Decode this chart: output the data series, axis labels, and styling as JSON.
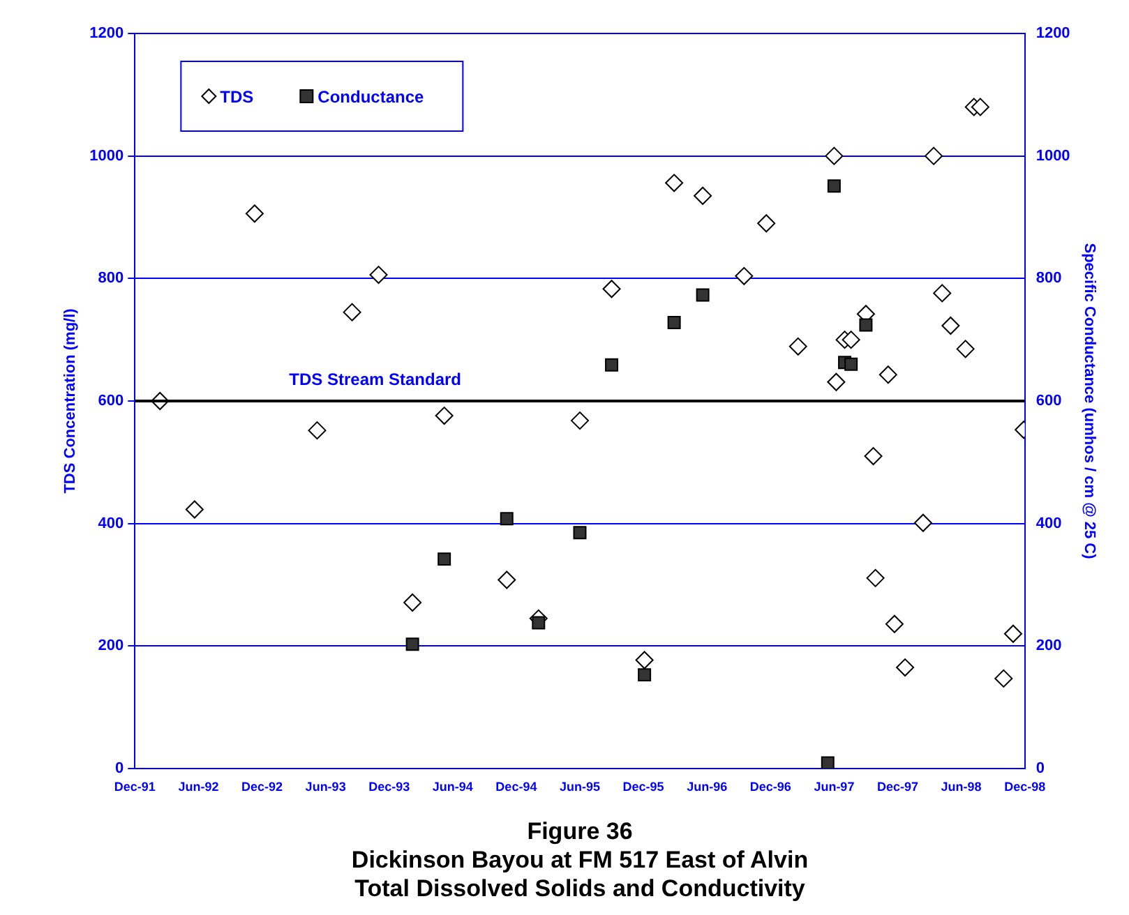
{
  "chart_data": {
    "type": "scatter",
    "title": "Figure 36\nDickinson Bayou at FM 517 East of Alvin\nTotal Dissolved Solids and Conductivity",
    "ylabel": "TDS Concentration (mg/l)",
    "y2label": "Specific Conductance (umhos / cm @ 25 C)",
    "xlim": [
      "1991-12",
      "1998-12"
    ],
    "xticks": [
      {
        "value": "1991-12",
        "label": "Dec-91"
      },
      {
        "value": "1992-06",
        "label": "Jun-92"
      },
      {
        "value": "1992-12",
        "label": "Dec-92"
      },
      {
        "value": "1993-06",
        "label": "Jun-93"
      },
      {
        "value": "1993-12",
        "label": "Dec-93"
      },
      {
        "value": "1994-06",
        "label": "Jun-94"
      },
      {
        "value": "1994-12",
        "label": "Dec-94"
      },
      {
        "value": "1995-06",
        "label": "Jun-95"
      },
      {
        "value": "1995-12",
        "label": "Dec-95"
      },
      {
        "value": "1996-06",
        "label": "Jun-96"
      },
      {
        "value": "1996-12",
        "label": "Dec-96"
      },
      {
        "value": "1997-06",
        "label": "Jun-97"
      },
      {
        "value": "1997-12",
        "label": "Dec-97"
      },
      {
        "value": "1998-06",
        "label": "Jun-98"
      },
      {
        "value": "1998-12",
        "label": "Dec-98"
      }
    ],
    "ylim": [
      0,
      1200
    ],
    "yticks": [
      0,
      200,
      400,
      600,
      800,
      1000,
      1200
    ],
    "y2lim": [
      0,
      1200
    ],
    "y2ticks": [
      0,
      200,
      400,
      600,
      800,
      1000,
      1200
    ],
    "grid": "y",
    "legend": "top left",
    "ref_lines": [
      {
        "axis": "y",
        "value": 600,
        "label": "TDS Stream Standard",
        "color": "#000000"
      }
    ],
    "series": [
      {
        "name": "TDS",
        "color": "#000000",
        "marker": "diamond",
        "x": [
          "1992-02-12",
          "1992-05-20",
          "1992-11-10",
          "1993-05-07",
          "1993-08-16",
          "1993-11-01",
          "1994-02-07",
          "1994-05-07",
          "1994-11-04",
          "1995-02-04",
          "1995-06-01",
          "1995-09-01",
          "1995-12-04",
          "1996-02-28",
          "1996-05-19",
          "1996-09-16",
          "1996-11-19",
          "1997-02-19",
          "1997-06-01",
          "1997-06-07",
          "1997-07-01",
          "1997-07-19",
          "1997-09-01",
          "1997-09-22",
          "1997-11-04",
          "1997-09-28",
          "1997-11-22",
          "1997-12-22",
          "1998-02-13",
          "1998-03-13",
          "1998-04-07",
          "1998-05-01",
          "1998-06-13",
          "1998-07-07",
          "1998-07-25",
          "1998-10-01",
          "1998-10-28",
          "1998-11-28"
        ],
        "values": [
          600,
          423,
          906,
          552,
          745,
          806,
          271,
          576,
          308,
          245,
          568,
          783,
          177,
          956,
          935,
          804,
          890,
          689,
          1000,
          631,
          700,
          700,
          742,
          510,
          643,
          311,
          236,
          165,
          401,
          1000,
          776,
          723,
          685,
          1080,
          1080,
          147,
          220,
          553
        ]
      },
      {
        "name": "Conductance",
        "color": "#333333",
        "marker": "square",
        "axis": "y2",
        "x": [
          "1994-02-07",
          "1994-05-07",
          "1994-11-04",
          "1995-02-04",
          "1995-06-01",
          "1995-09-01",
          "1995-12-04",
          "1996-02-28",
          "1996-05-19",
          "1997-05-13",
          "1997-06-01",
          "1997-07-01",
          "1997-07-19",
          "1997-09-01"
        ],
        "values": [
          203,
          342,
          408,
          238,
          385,
          659,
          153,
          728,
          773,
          9,
          951,
          663,
          660,
          724
        ]
      }
    ]
  }
}
